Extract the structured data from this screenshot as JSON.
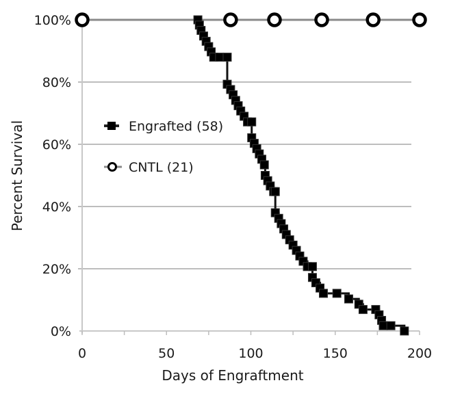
{
  "chart_data": {
    "type": "line",
    "title": "",
    "xlabel": "Days of Engraftment",
    "ylabel": "Percent Survival",
    "xlim": [
      0,
      200
    ],
    "ylim": [
      0,
      100
    ],
    "x_ticks": [
      0,
      50,
      100,
      150,
      200
    ],
    "x_tick_labels": [
      "0",
      "50",
      "100",
      "150",
      "200"
    ],
    "y_ticks": [
      0,
      20,
      40,
      60,
      80,
      100
    ],
    "y_tick_labels": [
      "0%",
      "20%",
      "40%",
      "60%",
      "80%",
      "100%"
    ],
    "grid": "horizontal",
    "legend_position": "center-left",
    "series": [
      {
        "name": "Engrafted (58)",
        "style": "step",
        "marker": "square",
        "color": "#000000",
        "x": [
          68.6,
          69.5,
          70.5,
          72,
          73,
          74.5,
          76,
          77.5,
          78.5,
          80,
          81,
          82.5,
          86,
          86,
          87,
          88,
          89.5,
          91,
          92.5,
          94,
          95.5,
          97,
          99,
          100.5,
          101,
          102,
          103.5,
          105,
          106.5,
          108,
          109.5,
          111,
          112.5,
          114,
          115,
          116.5,
          118,
          119.5,
          121,
          122.5,
          125,
          127,
          129.5,
          131.5,
          133,
          135.5,
          138,
          141,
          142.5,
          145,
          147.5,
          150.5,
          158,
          166,
          169,
          178,
          181,
          191
        ],
        "y": [
          100,
          98.3,
          96.6,
          94.8,
          93.1,
          91.4,
          89.7,
          88.0,
          88.0,
          86.2,
          84.5,
          88.0,
          79.3,
          79.3,
          77.6,
          75.9,
          74.1,
          72.4,
          70.7,
          69.0,
          67.2,
          62.1,
          60.3,
          58.6,
          56.9,
          55.2,
          53.4,
          51.7,
          50.0,
          48.3,
          46.6,
          44.8,
          43.1,
          38.0,
          36.2,
          34.5,
          32.8,
          31.0,
          29.3,
          27.6,
          25.9,
          24.1,
          22.4,
          20.7,
          19.0,
          17.2,
          15.5,
          13.8,
          12.1,
          10.3,
          8.6,
          6.9,
          5.2,
          3.4,
          1.7,
          0,
          0,
          0
        ],
        "points": [
          [
            68.6,
            100
          ],
          [
            69.5,
            98.3
          ],
          [
            70.5,
            96.6
          ],
          [
            72,
            94.8
          ],
          [
            73.5,
            93.1
          ],
          [
            75,
            91.4
          ],
          [
            76.5,
            89.7
          ],
          [
            78,
            88
          ],
          [
            81.5,
            88
          ],
          [
            86,
            88
          ],
          [
            86,
            79.3
          ],
          [
            88,
            77.6
          ],
          [
            89.5,
            75.9
          ],
          [
            91,
            74.1
          ],
          [
            92.5,
            72.4
          ],
          [
            94,
            70.7
          ],
          [
            96,
            69
          ],
          [
            98,
            67.2
          ],
          [
            100.5,
            67.2
          ],
          [
            100.5,
            62.1
          ],
          [
            102,
            60.3
          ],
          [
            103.5,
            58.6
          ],
          [
            105,
            56.9
          ],
          [
            106.5,
            55.2
          ],
          [
            108,
            53.4
          ],
          [
            108.5,
            50
          ],
          [
            110,
            48.3
          ],
          [
            111.5,
            46.6
          ],
          [
            113.5,
            44.8
          ],
          [
            114.5,
            44.8
          ],
          [
            114.5,
            38
          ],
          [
            116.5,
            36.2
          ],
          [
            118,
            34.5
          ],
          [
            119.5,
            32.8
          ],
          [
            121,
            31
          ],
          [
            123,
            29.3
          ],
          [
            125,
            27.6
          ],
          [
            127,
            25.9
          ],
          [
            129,
            24.1
          ],
          [
            131,
            22.4
          ],
          [
            133.5,
            20.7
          ],
          [
            136.5,
            20.7
          ],
          [
            136.5,
            17.2
          ],
          [
            138.5,
            15.5
          ],
          [
            141,
            13.8
          ],
          [
            143,
            12.1
          ],
          [
            151,
            12.1
          ],
          [
            158,
            10.3
          ],
          [
            164,
            8.6
          ],
          [
            166.5,
            6.9
          ],
          [
            174,
            6.9
          ],
          [
            176,
            5.2
          ],
          [
            177.5,
            3.4
          ],
          [
            178.5,
            1.7
          ],
          [
            183,
            1.7
          ],
          [
            191,
            0
          ]
        ]
      },
      {
        "name": "CNTL (21)",
        "style": "step",
        "marker": "open-circle",
        "color": "#000000",
        "points": [
          [
            0,
            100
          ],
          [
            88,
            100
          ],
          [
            114,
            100
          ],
          [
            142,
            100
          ],
          [
            172.5,
            100
          ],
          [
            200,
            100
          ]
        ]
      }
    ]
  }
}
